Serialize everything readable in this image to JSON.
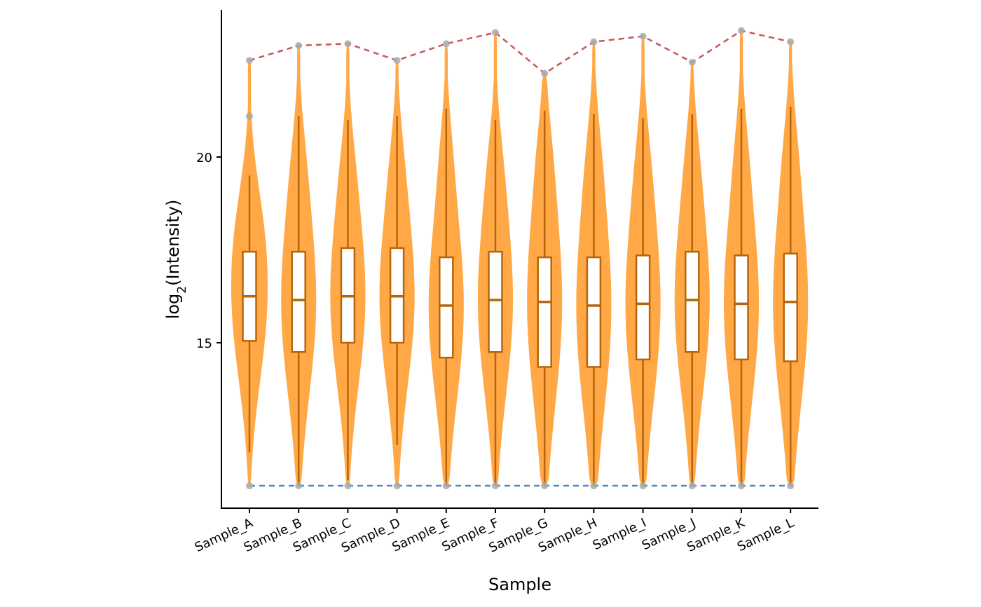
{
  "chart_data": {
    "type": "violin",
    "xlabel": "Sample",
    "ylabel": {
      "base": "log",
      "sub": "2",
      "rest": "(Intensity)"
    },
    "ylim": [
      10.4,
      23.9
    ],
    "yticks": [
      15,
      20
    ],
    "grid": false,
    "colors": {
      "violin": "#FFA33B",
      "box_line": "#B8640A",
      "max_line": "#C9575A",
      "min_line": "#4D8AC0",
      "point": "#A9A9A9"
    },
    "samples": [
      {
        "name": "Sample_A",
        "q1": 15.05,
        "median": 16.25,
        "q3": 17.45,
        "whisker_low": 12.05,
        "whisker_high": 19.5,
        "min": 11.15,
        "max": 22.6,
        "outliers": [
          21.1
        ]
      },
      {
        "name": "Sample_B",
        "q1": 14.75,
        "median": 16.15,
        "q3": 17.45,
        "whisker_low": 11.15,
        "whisker_high": 21.1,
        "min": 11.15,
        "max": 23.0,
        "outliers": []
      },
      {
        "name": "Sample_C",
        "q1": 15.0,
        "median": 16.25,
        "q3": 17.55,
        "whisker_low": 11.3,
        "whisker_high": 21.0,
        "min": 11.15,
        "max": 23.05,
        "outliers": []
      },
      {
        "name": "Sample_D",
        "q1": 15.0,
        "median": 16.25,
        "q3": 17.55,
        "whisker_low": 12.25,
        "whisker_high": 21.1,
        "min": 11.15,
        "max": 22.6,
        "outliers": []
      },
      {
        "name": "Sample_E",
        "q1": 14.6,
        "median": 16.0,
        "q3": 17.3,
        "whisker_low": 11.15,
        "whisker_high": 21.3,
        "min": 11.15,
        "max": 23.05,
        "outliers": []
      },
      {
        "name": "Sample_F",
        "q1": 14.75,
        "median": 16.15,
        "q3": 17.45,
        "whisker_low": 11.15,
        "whisker_high": 21.0,
        "min": 11.15,
        "max": 23.35,
        "outliers": []
      },
      {
        "name": "Sample_G",
        "q1": 14.35,
        "median": 16.1,
        "q3": 17.3,
        "whisker_low": 11.15,
        "whisker_high": 21.25,
        "min": 11.15,
        "max": 22.25,
        "outliers": []
      },
      {
        "name": "Sample_H",
        "q1": 14.35,
        "median": 16.0,
        "q3": 17.3,
        "whisker_low": 11.15,
        "whisker_high": 21.15,
        "min": 11.15,
        "max": 23.1,
        "outliers": []
      },
      {
        "name": "Sample_I",
        "q1": 14.55,
        "median": 16.05,
        "q3": 17.35,
        "whisker_low": 11.15,
        "whisker_high": 21.05,
        "min": 11.15,
        "max": 23.25,
        "outliers": []
      },
      {
        "name": "Sample_J",
        "q1": 14.75,
        "median": 16.15,
        "q3": 17.45,
        "whisker_low": 11.15,
        "whisker_high": 21.15,
        "min": 11.15,
        "max": 22.55,
        "outliers": []
      },
      {
        "name": "Sample_K",
        "q1": 14.55,
        "median": 16.05,
        "q3": 17.35,
        "whisker_low": 11.15,
        "whisker_high": 21.3,
        "min": 11.15,
        "max": 23.4,
        "outliers": []
      },
      {
        "name": "Sample_L",
        "q1": 14.5,
        "median": 16.1,
        "q3": 17.4,
        "whisker_low": 11.15,
        "whisker_high": 21.35,
        "min": 11.15,
        "max": 23.1,
        "outliers": []
      }
    ]
  }
}
